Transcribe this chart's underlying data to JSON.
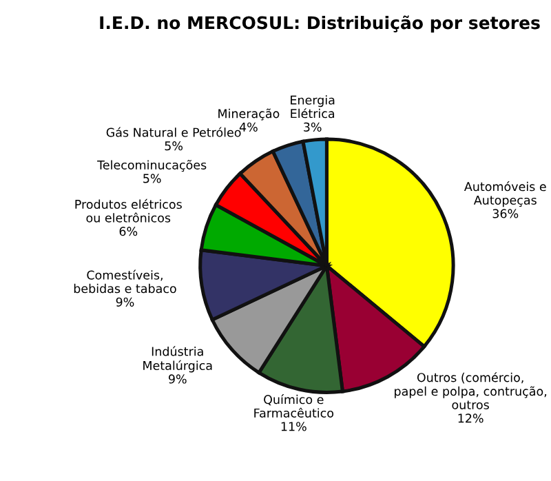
{
  "chart_data": {
    "type": "pie",
    "title": "I.E.D. no MERCOSUL: Distribuição por setores",
    "categories": [
      "Automóveis e\nAutopeças",
      "Outros (comércio,\npapel e polpa, contrução,\noutros",
      "Químico e\nFarmacêutico",
      "Indústria\nMetalúrgica",
      "Comestíveis,\nbebidas e tabaco",
      "Produtos elétricos\nou eletrônicos",
      "Telecominucações",
      "Gás Natural e Petróleo",
      "Mineração",
      "Energia\nElétrica"
    ],
    "values": [
      36,
      12,
      11,
      9,
      9,
      6,
      5,
      5,
      4,
      3
    ],
    "value_labels": [
      "36%",
      "12%",
      "11%",
      "9%",
      "9%",
      "6%",
      "5%",
      "5%",
      "4%",
      "3%"
    ],
    "colors": [
      "#ffff00",
      "#990033",
      "#336633",
      "#999999",
      "#333366",
      "#00aa00",
      "#ff0000",
      "#cc6633",
      "#336699",
      "#3399cc"
    ]
  }
}
